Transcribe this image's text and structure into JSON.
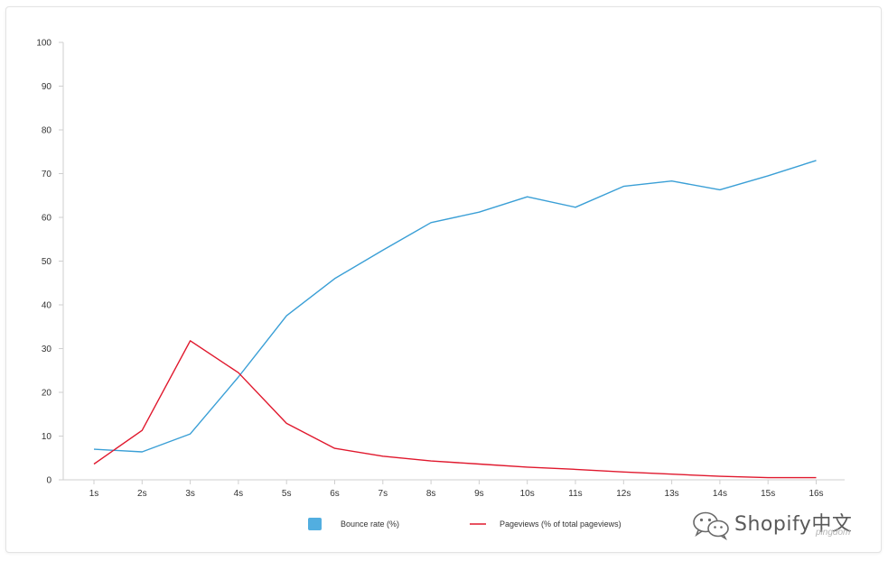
{
  "chart_data": {
    "type": "line",
    "categories": [
      "1s",
      "2s",
      "3s",
      "4s",
      "5s",
      "6s",
      "7s",
      "8s",
      "9s",
      "10s",
      "11s",
      "12s",
      "13s",
      "14s",
      "15s",
      "16s"
    ],
    "series": [
      {
        "name": "Bounce rate  (%)",
        "color": "#3a9fd6",
        "legend_marker": "square",
        "values": [
          7.0,
          6.4,
          10.5,
          23.5,
          37.5,
          46.0,
          52.5,
          58.8,
          61.2,
          64.7,
          62.3,
          67.1,
          68.3,
          66.3,
          69.5,
          73.0
        ]
      },
      {
        "name": "Pageviews (% of total pageviews)",
        "color": "#e0182d",
        "legend_marker": "line",
        "values": [
          3.6,
          11.3,
          31.8,
          24.5,
          12.9,
          7.2,
          5.4,
          4.3,
          3.6,
          2.9,
          2.4,
          1.8,
          1.3,
          0.8,
          0.5,
          0.5
        ]
      }
    ],
    "yticks": [
      0,
      10,
      20,
      30,
      40,
      50,
      60,
      70,
      80,
      90,
      100
    ],
    "ylim": [
      0,
      100
    ],
    "grid": false,
    "legend_position": "bottom"
  },
  "watermark": {
    "text": "Shopify中文",
    "sub": "pingdom",
    "icon": "wechat-icon"
  }
}
